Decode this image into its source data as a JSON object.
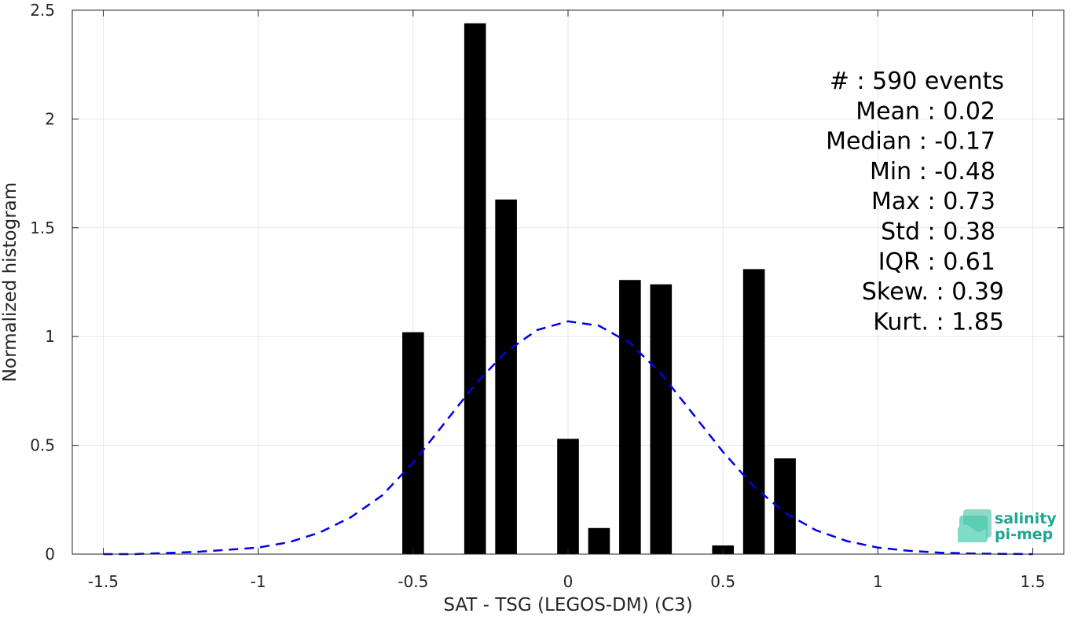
{
  "chart_data": {
    "type": "bar",
    "xlabel": "SAT - TSG (LEGOS-DM) (C3)",
    "ylabel": "Normalized histogram",
    "xlim": [
      -1.6,
      1.6
    ],
    "ylim": [
      0,
      2.5
    ],
    "xticks": [
      -1.5,
      -1,
      -0.5,
      0,
      0.5,
      1,
      1.5
    ],
    "xtick_labels": [
      "-1.5",
      "-1",
      "-0.5",
      "0",
      "0.5",
      "1",
      "1.5"
    ],
    "yticks": [
      0,
      0.5,
      1,
      1.5,
      2,
      2.5
    ],
    "ytick_labels": [
      "0",
      "0.5",
      "1",
      "1.5",
      "2",
      "2.5"
    ],
    "grid": true,
    "bar_width": 0.07,
    "bars": [
      {
        "x": -0.5,
        "value": 1.02
      },
      {
        "x": -0.3,
        "value": 2.44
      },
      {
        "x": -0.2,
        "value": 1.63
      },
      {
        "x": 0.0,
        "value": 0.53
      },
      {
        "x": 0.1,
        "value": 0.12
      },
      {
        "x": 0.2,
        "value": 1.26
      },
      {
        "x": 0.3,
        "value": 1.24
      },
      {
        "x": 0.5,
        "value": 0.04
      },
      {
        "x": 0.6,
        "value": 1.31
      },
      {
        "x": 0.7,
        "value": 0.44
      }
    ],
    "fit_curve": {
      "style": "dashed",
      "color": "#0000ee",
      "x": [
        -1.5,
        -1.4,
        -1.3,
        -1.2,
        -1.1,
        -1.0,
        -0.9,
        -0.8,
        -0.7,
        -0.6,
        -0.5,
        -0.4,
        -0.3,
        -0.2,
        -0.1,
        0.0,
        0.1,
        0.2,
        0.3,
        0.4,
        0.5,
        0.6,
        0.7,
        0.8,
        0.9,
        1.0,
        1.1,
        1.2,
        1.3,
        1.4,
        1.5
      ],
      "y": [
        0.0,
        0.0,
        0.005,
        0.01,
        0.02,
        0.03,
        0.055,
        0.1,
        0.17,
        0.27,
        0.42,
        0.6,
        0.78,
        0.93,
        1.03,
        1.07,
        1.05,
        0.97,
        0.83,
        0.65,
        0.47,
        0.31,
        0.19,
        0.11,
        0.06,
        0.03,
        0.015,
        0.007,
        0.003,
        0.001,
        0.0
      ]
    },
    "stats": [
      "#  : 590 events",
      "Mean : 0.02",
      "Median : -0.17",
      "Min : -0.48",
      "Max : 0.73",
      "Std : 0.38",
      "IQR : 0.61",
      "Skew. : 0.39",
      "Kurt. : 1.85"
    ]
  },
  "logo": {
    "line1": "salinity",
    "line2": "pi-mep",
    "color": "#1aa890"
  }
}
